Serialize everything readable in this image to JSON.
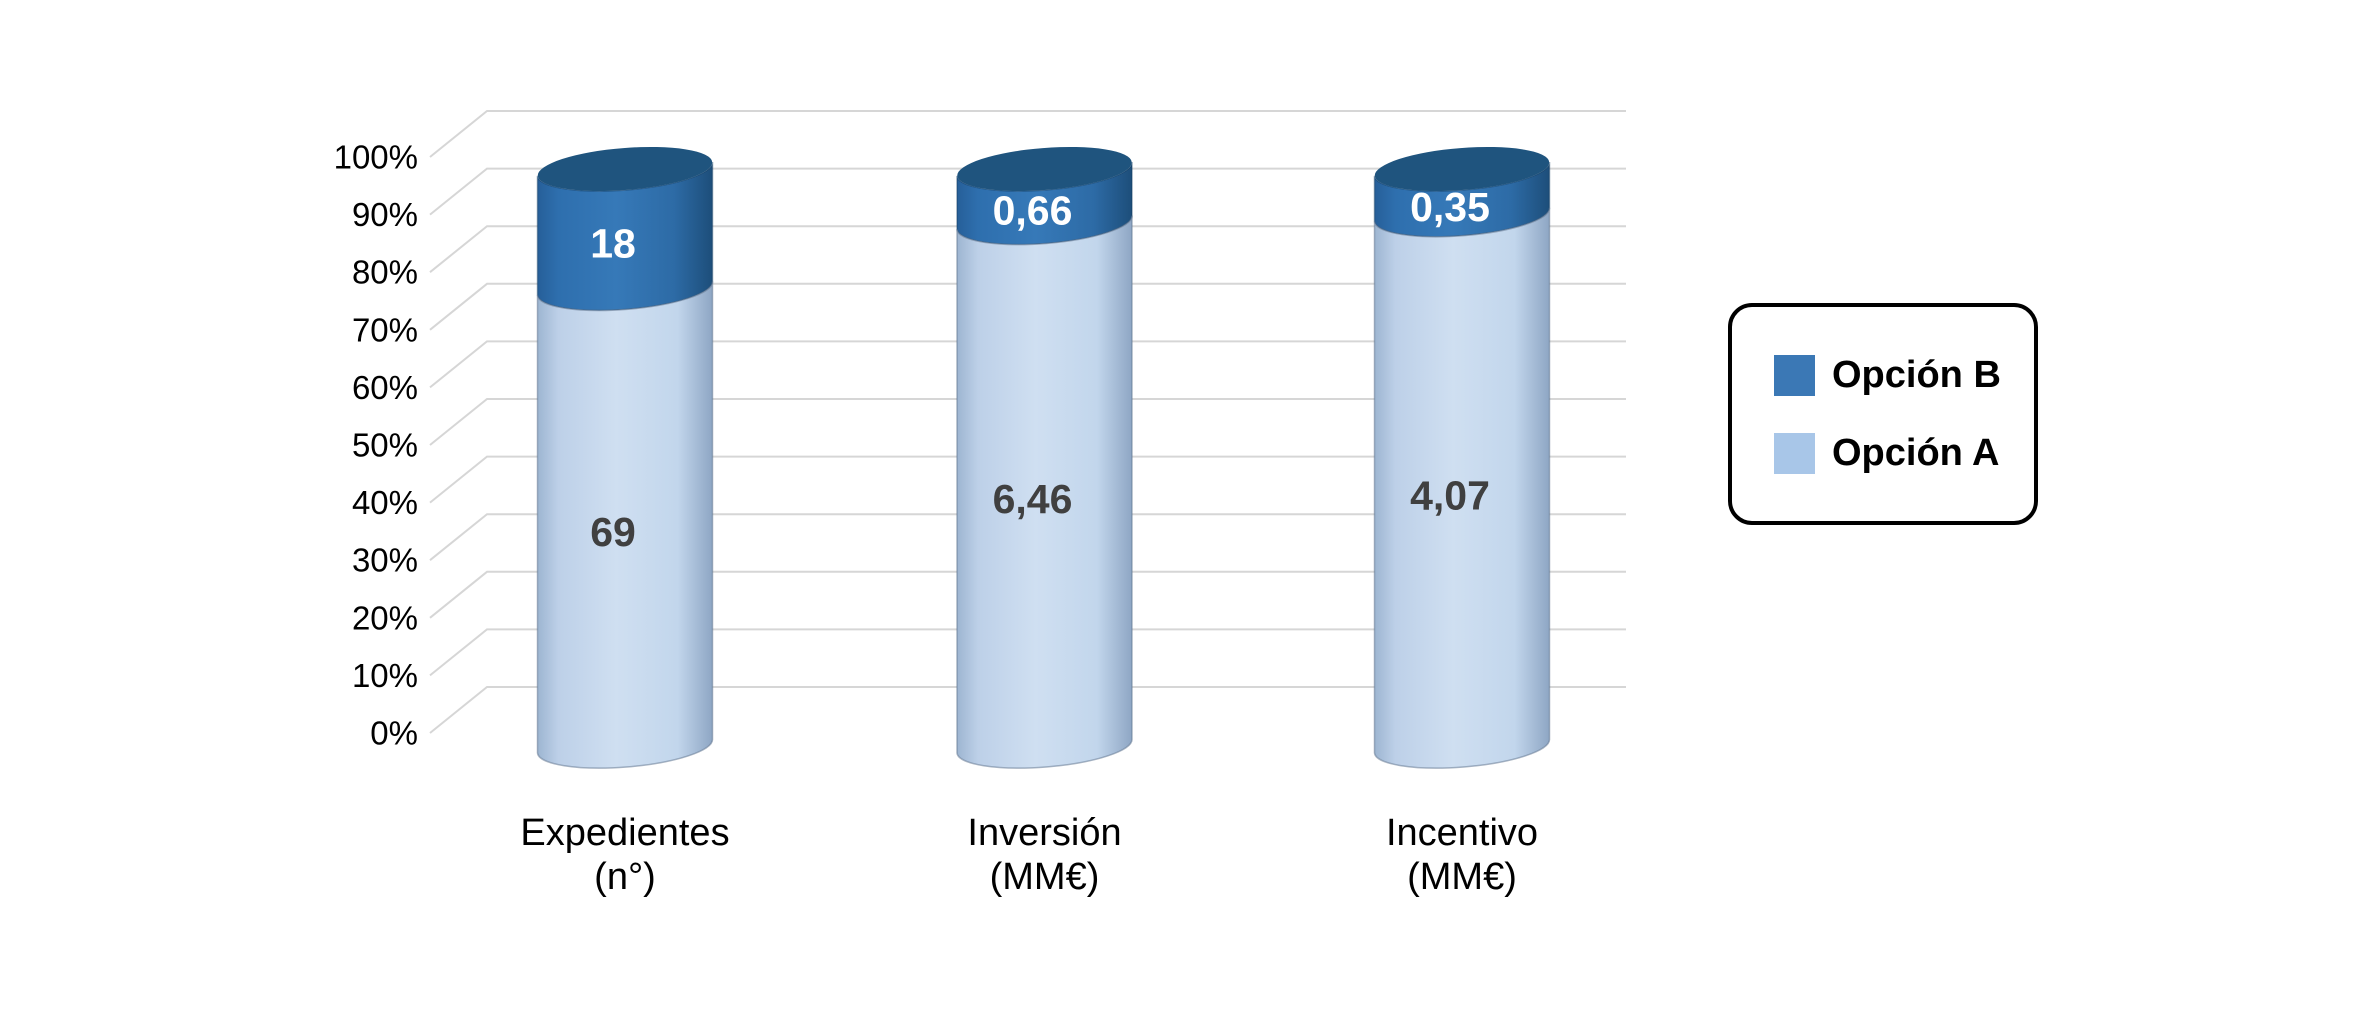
{
  "chart_data": {
    "type": "bar",
    "variant": "3d-cylinder-stacked-100-percent",
    "title": "",
    "categories": [
      {
        "label_lines": [
          "Expedientes",
          "(n°)"
        ]
      },
      {
        "label_lines": [
          "Inversión",
          "(MM€)"
        ]
      },
      {
        "label_lines": [
          "Incentivo",
          "(MM€)"
        ]
      }
    ],
    "series": [
      {
        "name": "Opción B",
        "stack_position": "top",
        "values": [
          18,
          0.66,
          0.35
        ],
        "value_labels": [
          "18",
          "0,66",
          "0,35"
        ],
        "body_color": "#2E6FAE",
        "cap_color": "#1F547E",
        "swatch_color": "#3B78B5",
        "value_label_color": "#FFFFFF"
      },
      {
        "name": "Opción A",
        "stack_position": "bottom",
        "values": [
          69,
          6.46,
          4.07
        ],
        "value_labels": [
          "69",
          "6,46",
          "4,07"
        ],
        "body_color": "#C5D9EE",
        "swatch_color": "#A8C6E8",
        "value_label_color": "#404040"
      }
    ],
    "stacking": "percent",
    "y_axis": {
      "min": 0,
      "max": 100,
      "ticks": [
        "0%",
        "10%",
        "20%",
        "30%",
        "40%",
        "50%",
        "60%",
        "70%",
        "80%",
        "90%",
        "100%"
      ]
    },
    "grid": true,
    "gridline_color": "#D6D6D6",
    "axis_text_color": "#000000",
    "legend": {
      "position": "right",
      "border_color": "#000000",
      "entries": [
        "Opción B",
        "Opción A"
      ]
    },
    "background": "#FFFFFF"
  }
}
